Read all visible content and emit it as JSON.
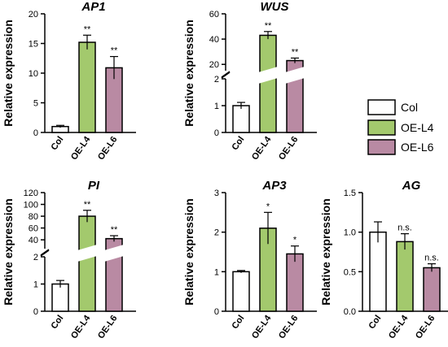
{
  "colors": {
    "Col": "#ffffff",
    "OE-L4": "#a3c96d",
    "OE-L6": "#b98aa3",
    "outline": "#000000"
  },
  "legend": {
    "position": "right",
    "entries": [
      {
        "label": "Col",
        "color": "#ffffff"
      },
      {
        "label": "OE-L4",
        "color": "#a3c96d"
      },
      {
        "label": "OE-L6",
        "color": "#b98aa3"
      }
    ]
  },
  "chart_data": [
    {
      "type": "bar",
      "title": "AP1",
      "ylabel": "Relative expression",
      "categories": [
        "Col",
        "OE-L4",
        "OE-L6"
      ],
      "values": [
        1.0,
        15.2,
        10.9
      ],
      "errors": [
        0.2,
        1.2,
        1.9
      ],
      "annotations": [
        "",
        "**",
        "**"
      ],
      "ylim": [
        0,
        20
      ],
      "ticks": [
        "0",
        "5",
        "10",
        "15",
        "20"
      ]
    },
    {
      "type": "bar",
      "title": "WUS",
      "ylabel": "Relative expression",
      "categories": [
        "Col",
        "OE-L4",
        "OE-L6"
      ],
      "values": [
        1.0,
        43.0,
        23.0
      ],
      "errors": [
        0.12,
        3.0,
        2.0
      ],
      "annotations": [
        "",
        "**",
        "**"
      ],
      "broken_axis": {
        "lower": [
          0,
          2
        ],
        "upper": [
          15,
          60
        ]
      },
      "ticks": [
        "0",
        "1",
        "2",
        "20",
        "40",
        "60"
      ]
    },
    {
      "type": "bar",
      "title": "PI",
      "ylabel": "Relative expression",
      "categories": [
        "Col",
        "OE-L4",
        "OE-L6"
      ],
      "values": [
        1.0,
        80.0,
        42.0
      ],
      "errors": [
        0.13,
        10.0,
        5.0
      ],
      "annotations": [
        "",
        "**",
        "**"
      ],
      "broken_axis": {
        "lower": [
          0,
          2
        ],
        "upper": [
          25,
          120
        ]
      },
      "ticks": [
        "0",
        "1",
        "2",
        "40",
        "60",
        "80",
        "100",
        "120"
      ]
    },
    {
      "type": "bar",
      "title": "AP3",
      "ylabel": "Relative expression",
      "categories": [
        "Col",
        "OE-L4",
        "OE-L6"
      ],
      "values": [
        1.0,
        2.1,
        1.45
      ],
      "errors": [
        0.03,
        0.4,
        0.2
      ],
      "annotations": [
        "",
        "*",
        "*"
      ],
      "ylim": [
        0,
        3
      ],
      "ticks": [
        "0",
        "1",
        "2",
        "3"
      ]
    },
    {
      "type": "bar",
      "title": "AG",
      "ylabel": "Relative expression",
      "categories": [
        "Col",
        "OE-L4",
        "OE-L6"
      ],
      "values": [
        1.0,
        0.88,
        0.55
      ],
      "errors": [
        0.13,
        0.1,
        0.05
      ],
      "annotations": [
        "",
        "n.s.",
        "n.s."
      ],
      "ylim": [
        0,
        1.5
      ],
      "ticks": [
        "0.0",
        "0.5",
        "1.0",
        "1.5"
      ]
    }
  ]
}
